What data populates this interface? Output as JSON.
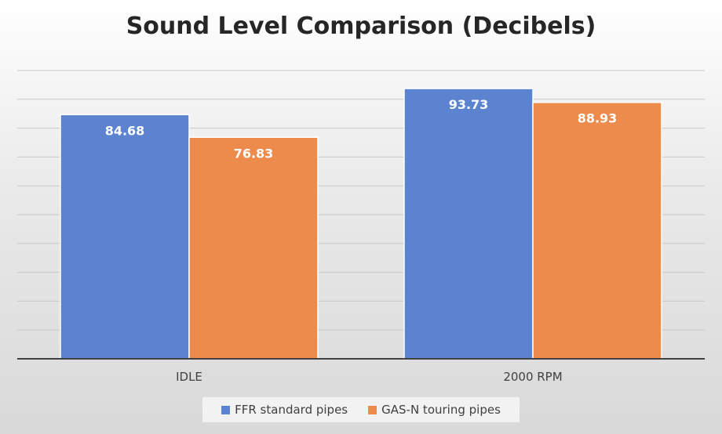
{
  "chart_data": {
    "type": "bar",
    "title": "Sound Level Comparison (Decibels)",
    "categories": [
      "IDLE",
      "2000 RPM"
    ],
    "series": [
      {
        "name": "FFR standard pipes",
        "values": [
          84.68,
          93.73
        ],
        "color": "#5b83cf"
      },
      {
        "name": "GAS-N touring pipes",
        "values": [
          76.83,
          88.93
        ],
        "color": "#ec8b4c"
      }
    ],
    "ylim": [
      0,
      100
    ],
    "grid": true,
    "legend": "bottom",
    "data_labels": [
      "84.68",
      "93.73",
      "76.83",
      "88.93"
    ]
  }
}
